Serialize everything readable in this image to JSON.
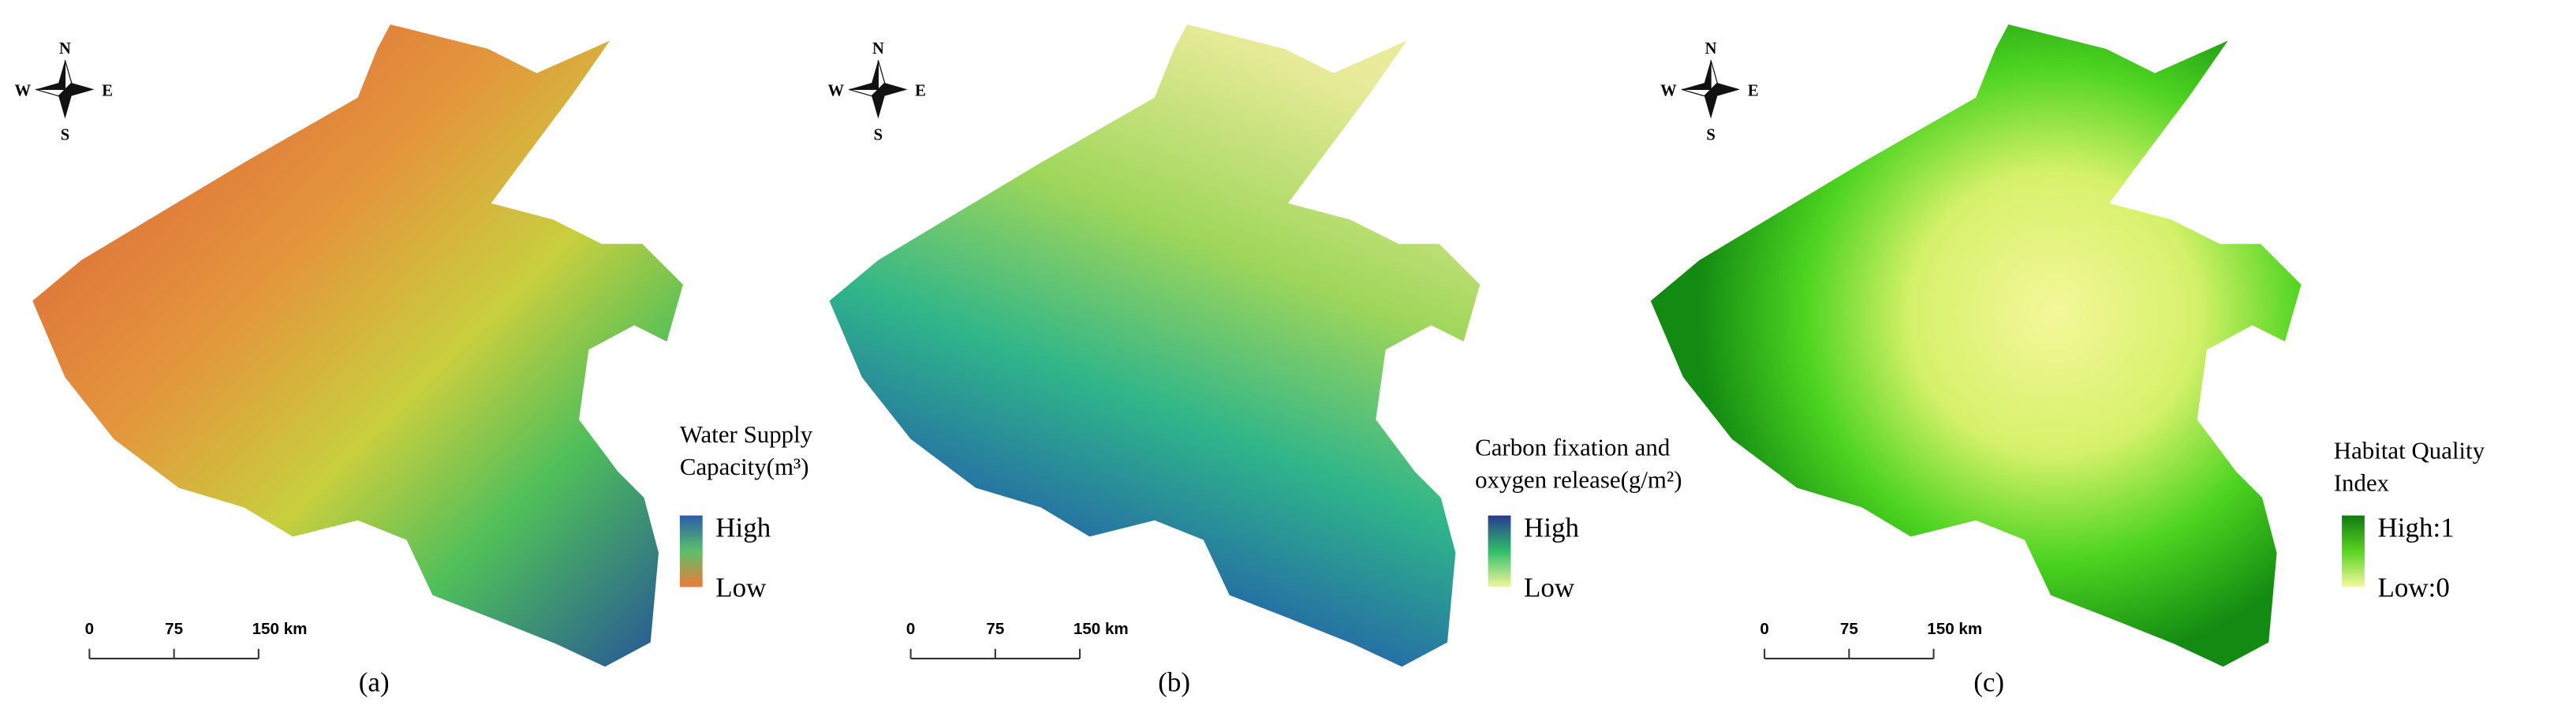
{
  "panels": [
    {
      "compass": {
        "n": "N",
        "e": "E",
        "s": "S",
        "w": "W"
      },
      "legend": {
        "title": [
          "Water Supply",
          "Capacity(m³)"
        ],
        "high": "High",
        "low": "Low"
      },
      "scale": [
        "0",
        "75",
        "150 km"
      ],
      "caption": "(a)"
    },
    {
      "compass": {
        "n": "N",
        "e": "E",
        "s": "S",
        "w": "W"
      },
      "legend": {
        "title": [
          "Carbon fixation and",
          "oxygen release(g/m²)"
        ],
        "high": "High",
        "low": "Low"
      },
      "scale": [
        "0",
        "75",
        "150 km"
      ],
      "caption": "(b)"
    },
    {
      "compass": {
        "n": "N",
        "e": "E",
        "s": "S",
        "w": "W"
      },
      "legend": {
        "title": [
          "Habitat Quality",
          "Index"
        ],
        "high": "High:1",
        "low": "Low:0"
      },
      "scale": [
        "0",
        "75",
        "150 km"
      ],
      "caption": "(c)"
    }
  ]
}
